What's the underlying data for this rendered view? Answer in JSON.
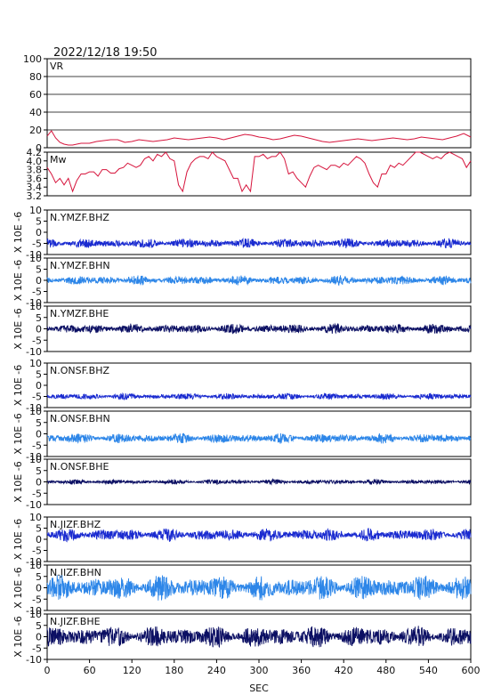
{
  "chart_data": {
    "type": "line",
    "title": "2022/12/18  19:50",
    "xlabel": "SEC",
    "x_ticks": [
      0,
      60,
      120,
      180,
      240,
      300,
      360,
      420,
      480,
      540,
      600
    ],
    "xlim": [
      0,
      600
    ],
    "seismo_ylabel": "X 10E -6",
    "panels": [
      {
        "name": "VR",
        "kind": "vr",
        "color": "#d6143c",
        "ylim": [
          0,
          100
        ],
        "ticks": [
          0,
          20,
          40,
          60,
          80,
          100
        ],
        "grid": true,
        "x": [
          0,
          6,
          12,
          18,
          24,
          30,
          36,
          42,
          48,
          54,
          60,
          70,
          80,
          90,
          100,
          110,
          120,
          130,
          140,
          150,
          160,
          170,
          180,
          190,
          200,
          210,
          220,
          230,
          240,
          250,
          260,
          270,
          280,
          290,
          300,
          310,
          320,
          330,
          340,
          350,
          360,
          370,
          380,
          390,
          400,
          410,
          420,
          430,
          440,
          450,
          460,
          470,
          480,
          490,
          500,
          510,
          520,
          530,
          540,
          550,
          560,
          570,
          580,
          590,
          600
        ],
        "y": [
          13,
          19,
          11,
          6,
          4,
          3,
          3,
          4,
          5,
          5,
          5,
          7,
          8,
          9,
          9,
          6,
          7,
          9,
          8,
          7,
          8,
          9,
          11,
          10,
          9,
          10,
          11,
          12,
          11,
          9,
          11,
          13,
          15,
          14,
          12,
          11,
          9,
          10,
          12,
          14,
          13,
          11,
          9,
          7,
          6,
          7,
          8,
          9,
          10,
          9,
          8,
          9,
          10,
          11,
          10,
          9,
          10,
          12,
          11,
          10,
          9,
          11,
          13,
          16,
          12
        ]
      },
      {
        "name": "Mw",
        "kind": "mw",
        "color": "#d6143c",
        "ylim": [
          3.2,
          4.2
        ],
        "ticks": [
          3.2,
          3.4,
          3.6,
          3.8,
          4.0,
          4.2
        ],
        "grid": false,
        "x": [
          0,
          6,
          12,
          18,
          24,
          30,
          36,
          42,
          48,
          54,
          60,
          66,
          72,
          78,
          84,
          90,
          96,
          102,
          108,
          114,
          120,
          126,
          132,
          138,
          144,
          150,
          156,
          162,
          168,
          174,
          180,
          186,
          192,
          198,
          204,
          210,
          216,
          222,
          228,
          234,
          240,
          246,
          252,
          258,
          264,
          270,
          276,
          282,
          288,
          294,
          300,
          306,
          312,
          318,
          324,
          330,
          336,
          342,
          348,
          354,
          360,
          366,
          372,
          378,
          384,
          390,
          396,
          402,
          408,
          414,
          420,
          426,
          432,
          438,
          444,
          450,
          456,
          462,
          468,
          474,
          480,
          486,
          492,
          498,
          504,
          510,
          516,
          522,
          528,
          534,
          540,
          546,
          552,
          558,
          564,
          570,
          576,
          582,
          588,
          594,
          600
        ],
        "y": [
          3.85,
          3.7,
          3.5,
          3.6,
          3.45,
          3.6,
          3.3,
          3.55,
          3.7,
          3.7,
          3.75,
          3.75,
          3.65,
          3.8,
          3.8,
          3.72,
          3.72,
          3.82,
          3.85,
          3.95,
          3.9,
          3.85,
          3.9,
          4.05,
          4.1,
          4.0,
          4.15,
          4.1,
          4.2,
          4.05,
          4.0,
          3.45,
          3.3,
          3.75,
          3.95,
          4.05,
          4.1,
          4.1,
          4.05,
          4.2,
          4.1,
          4.05,
          4.0,
          3.8,
          3.6,
          3.6,
          3.3,
          3.45,
          3.3,
          4.1,
          4.1,
          4.15,
          4.05,
          4.1,
          4.1,
          4.2,
          4.05,
          3.7,
          3.75,
          3.6,
          3.5,
          3.4,
          3.65,
          3.85,
          3.9,
          3.85,
          3.8,
          3.9,
          3.9,
          3.85,
          3.95,
          3.9,
          4.0,
          4.1,
          4.05,
          3.95,
          3.7,
          3.5,
          3.4,
          3.7,
          3.7,
          3.9,
          3.85,
          3.95,
          3.9,
          4.0,
          4.1,
          4.2,
          4.2,
          4.15,
          4.1,
          4.05,
          4.1,
          4.05,
          4.15,
          4.2,
          4.15,
          4.1,
          4.05,
          3.85,
          4.0
        ]
      },
      {
        "name": "N.YMZF.BHZ",
        "kind": "seis",
        "color": "#1a2bd0",
        "ylim": [
          -10,
          10
        ],
        "ticks": [
          -10,
          -5,
          0,
          5,
          10
        ],
        "baseline": -5,
        "amplitude": 0.9
      },
      {
        "name": "N.YMZF.BHN",
        "kind": "seis",
        "color": "#2d86e8",
        "ylim": [
          -10,
          10
        ],
        "ticks": [
          -10,
          -5,
          0,
          5,
          10
        ],
        "baseline": 0,
        "amplitude": 0.9
      },
      {
        "name": "N.YMZF.BHE",
        "kind": "seis",
        "color": "#0b0f63",
        "ylim": [
          -10,
          10
        ],
        "ticks": [
          -10,
          -5,
          0,
          5,
          10
        ],
        "baseline": 0,
        "amplitude": 0.9
      },
      {
        "name": "N.ONSF.BHZ",
        "kind": "seis",
        "color": "#1a2bd0",
        "ylim": [
          -10,
          10
        ],
        "ticks": [
          -10,
          -5,
          0,
          5,
          10
        ],
        "baseline": -5,
        "amplitude": 0.6
      },
      {
        "name": "N.ONSF.BHN",
        "kind": "seis",
        "color": "#2d86e8",
        "ylim": [
          -10,
          10
        ],
        "ticks": [
          -10,
          -5,
          0,
          5,
          10
        ],
        "baseline": -2,
        "amplitude": 0.9
      },
      {
        "name": "N.ONSF.BHE",
        "kind": "seis",
        "color": "#0b0f63",
        "ylim": [
          -10,
          10
        ],
        "ticks": [
          -10,
          -5,
          0,
          5,
          10
        ],
        "baseline": 0,
        "amplitude": 0.45
      },
      {
        "name": "N.JIZF.BHZ",
        "kind": "seis",
        "color": "#1a2bd0",
        "ylim": [
          -10,
          10
        ],
        "ticks": [
          -10,
          -5,
          0,
          5,
          10
        ],
        "baseline": 2,
        "amplitude": 1.2
      },
      {
        "name": "N.JIZF.BHN",
        "kind": "seis",
        "color": "#2d86e8",
        "ylim": [
          -10,
          10
        ],
        "ticks": [
          -10,
          -5,
          0,
          5,
          10
        ],
        "baseline": 0,
        "amplitude": 2.3
      },
      {
        "name": "N.JIZF.BHE",
        "kind": "seis",
        "color": "#0b0f63",
        "ylim": [
          -10,
          10
        ],
        "ticks": [
          -10,
          -5,
          0,
          5,
          10
        ],
        "baseline": 0,
        "amplitude": 2.0
      }
    ]
  }
}
